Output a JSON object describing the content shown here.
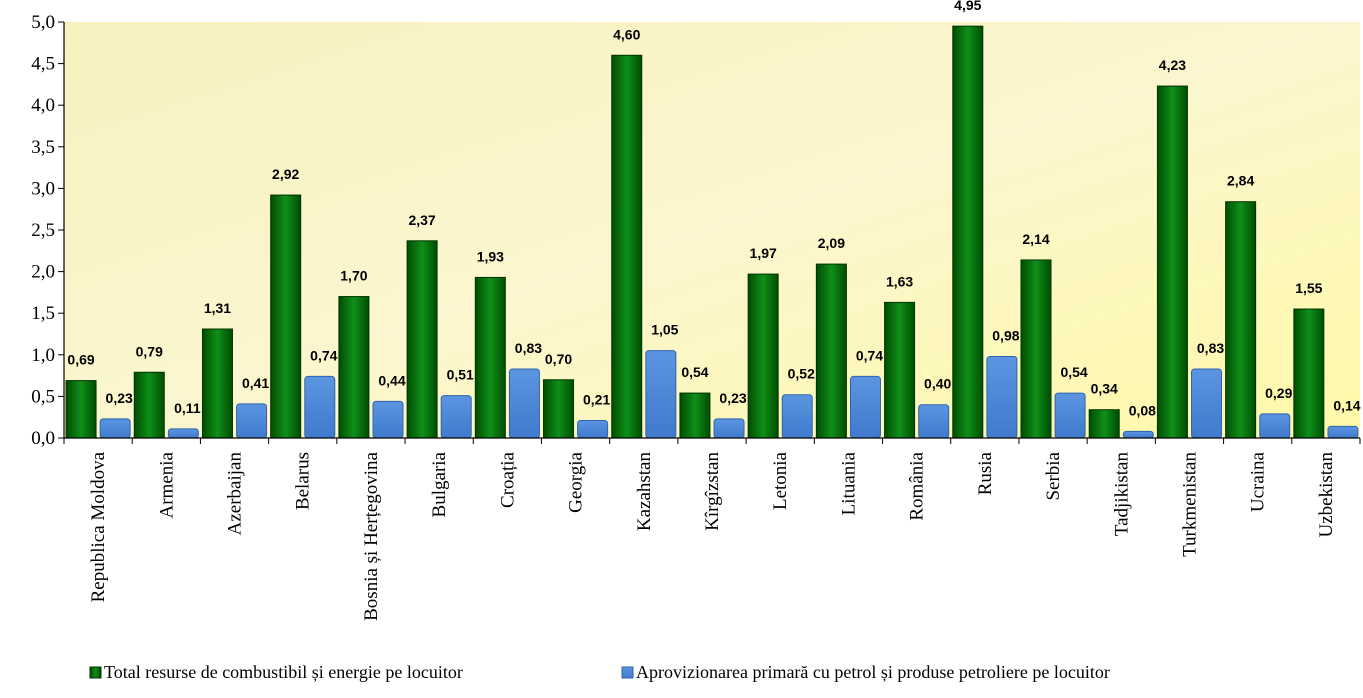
{
  "chart_data": {
    "type": "bar",
    "categories": [
      "Republica Moldova",
      "Armenia",
      "Azerbaijan",
      "Belarus",
      "Bosnia și Herțegovina",
      "Bulgaria",
      "Croația",
      "Georgia",
      "Kazahstan",
      "Kîrgîzstan",
      "Letonia",
      "Lituania",
      "România",
      "Rusia",
      "Serbia",
      "Tadjikistan",
      "Turkmenistan",
      "Ucraina",
      "Uzbekistan"
    ],
    "series": [
      {
        "name": "Total resurse de combustibil și energie pe locuitor",
        "values": [
          0.69,
          0.79,
          1.31,
          2.92,
          1.7,
          2.37,
          1.93,
          0.7,
          4.6,
          0.54,
          1.97,
          2.09,
          1.63,
          4.95,
          2.14,
          0.34,
          4.23,
          2.84,
          1.55
        ],
        "labels": [
          "0,69",
          "0,79",
          "1,31",
          "2,92",
          "1,70",
          "2,37",
          "1,93",
          "0,70",
          "4,60",
          "0,54",
          "1,97",
          "2,09",
          "1,63",
          "4,95",
          "2,14",
          "0,34",
          "4,23",
          "2,84",
          "1,55"
        ],
        "color": "#0a6e0a"
      },
      {
        "name": "Aprovizionarea primară cu petrol și produse petroliere pe locuitor",
        "values": [
          0.23,
          0.11,
          0.41,
          0.74,
          0.44,
          0.51,
          0.83,
          0.21,
          1.05,
          0.23,
          0.52,
          0.74,
          0.4,
          0.98,
          0.54,
          0.08,
          0.83,
          0.29,
          0.14
        ],
        "labels": [
          "0,23",
          "0,11",
          "0,41",
          "0,74",
          "0,44",
          "0,51",
          "0,83",
          "0,21",
          "1,05",
          "0,23",
          "0,52",
          "0,74",
          "0,40",
          "0,98",
          "0,54",
          "0,08",
          "0,83",
          "0,29",
          "0,14"
        ],
        "color": "#4a86d8"
      }
    ],
    "y_ticks": [
      "0,0",
      "0,5",
      "1,0",
      "1,5",
      "2,0",
      "2,5",
      "3,0",
      "3,5",
      "4,0",
      "4,5",
      "5,0"
    ],
    "ylim": [
      0,
      5
    ],
    "title": "",
    "xlabel": "",
    "ylabel": "",
    "grid": false,
    "legend_position": "bottom"
  }
}
